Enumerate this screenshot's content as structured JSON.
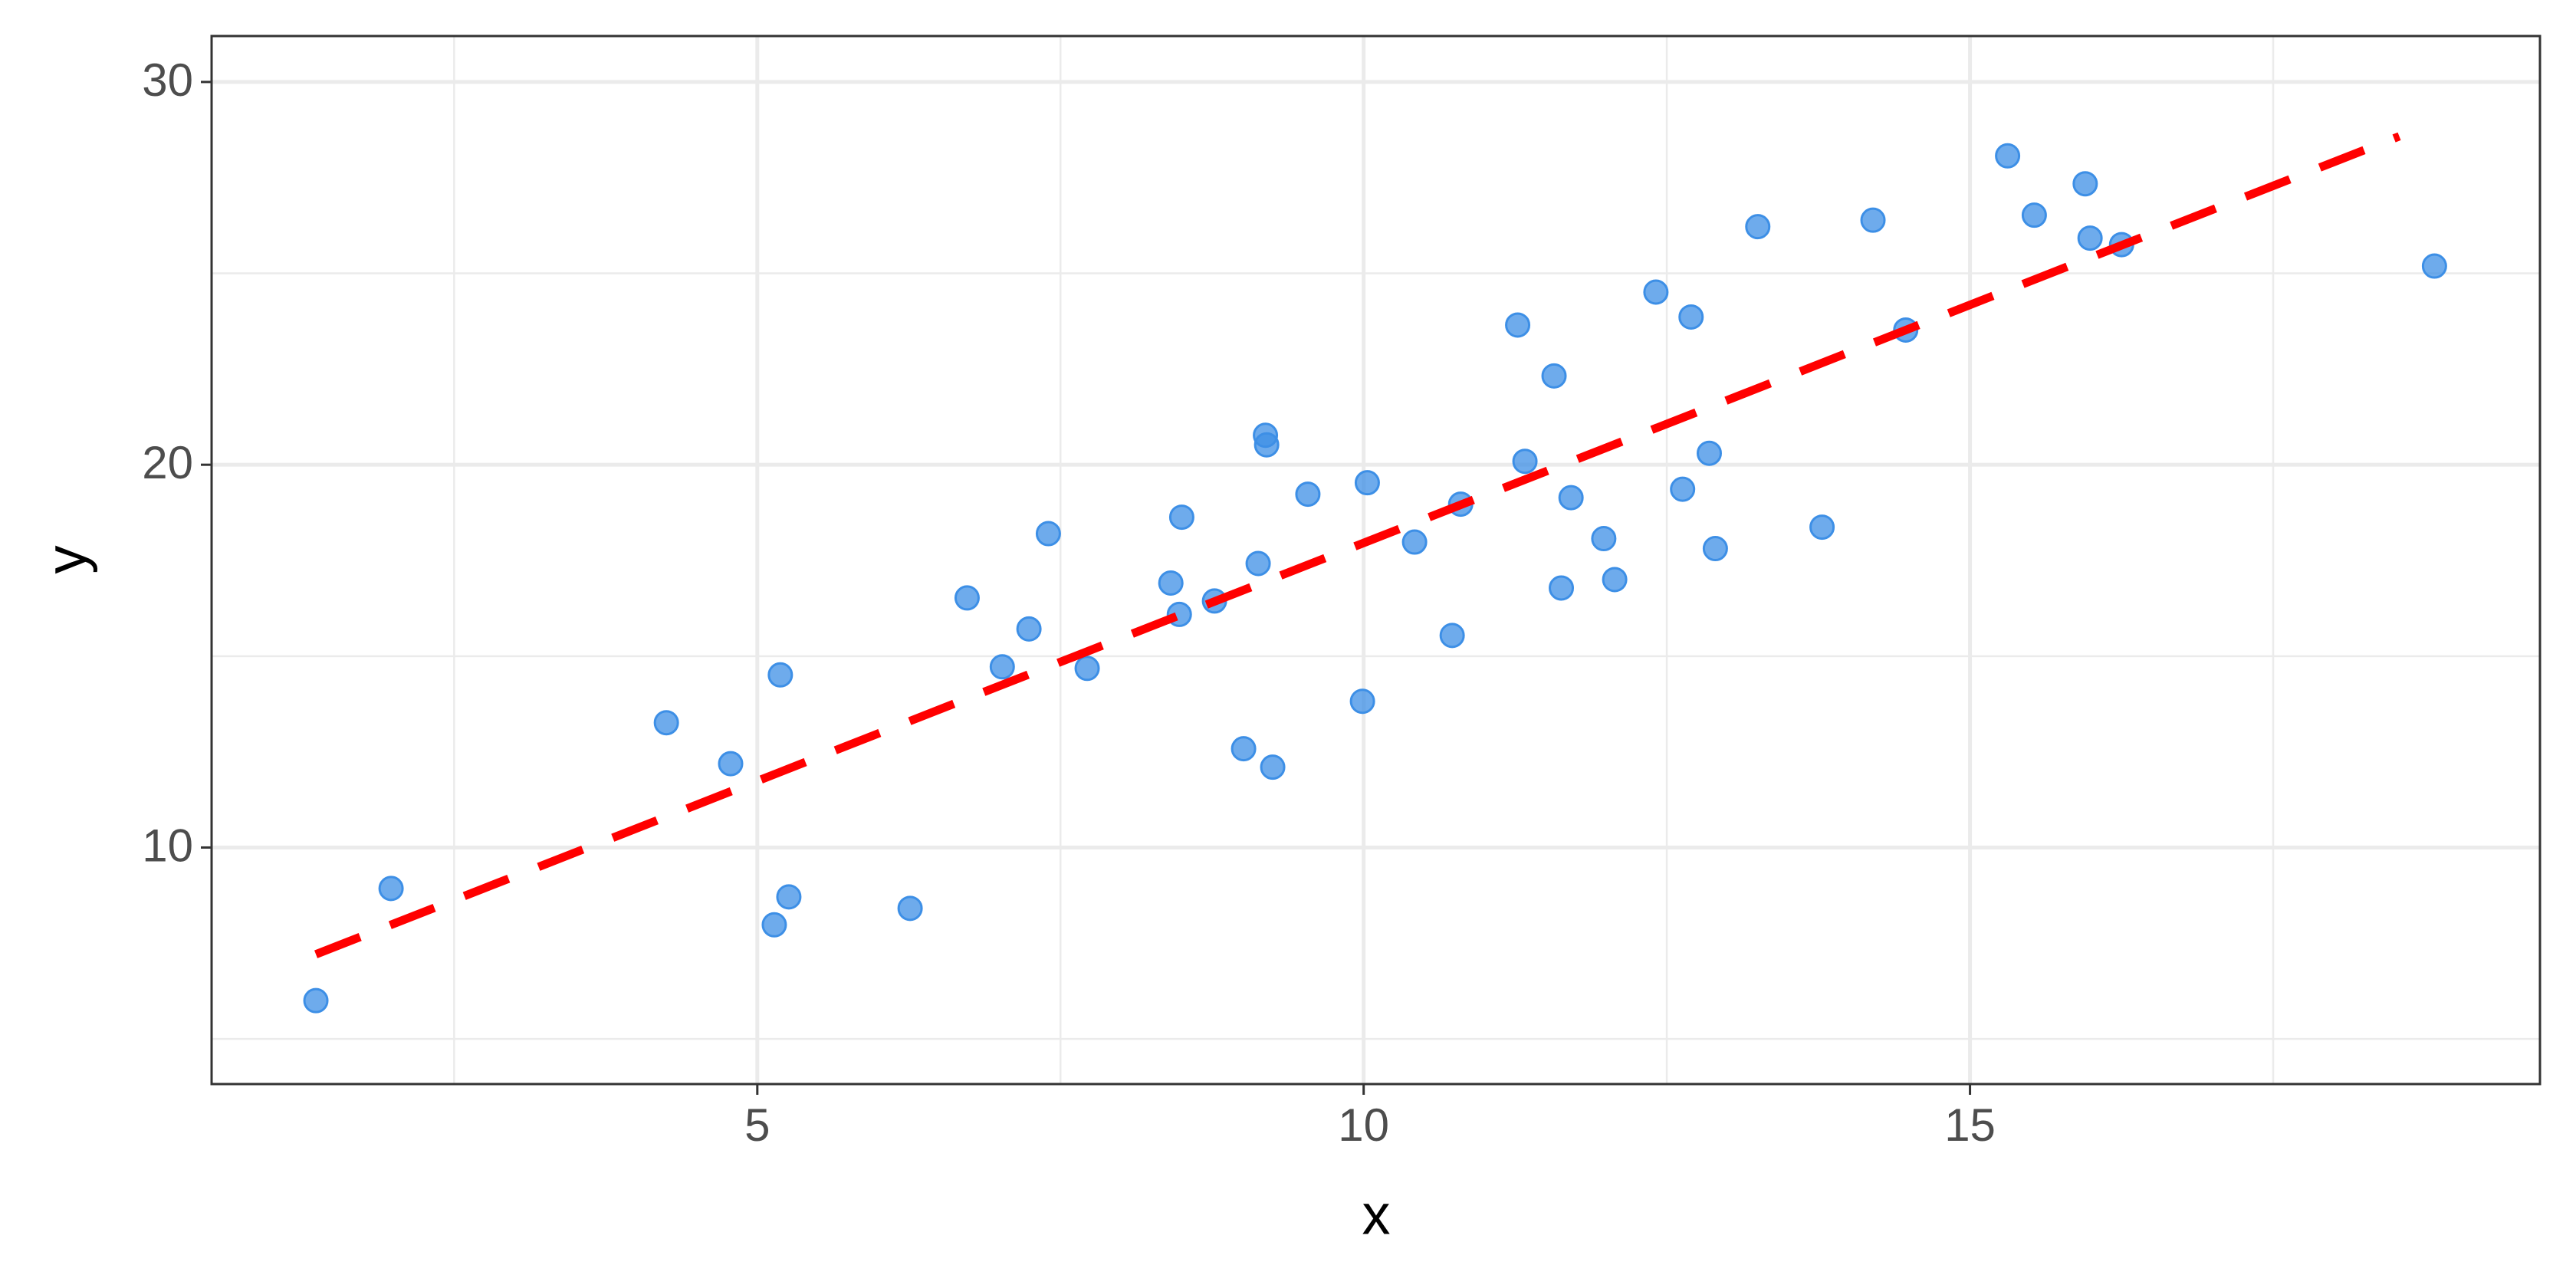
{
  "chart_data": {
    "type": "scatter",
    "xlabel": "x",
    "ylabel": "y",
    "x": [
      1.36,
      1.98,
      4.25,
      4.78,
      5.19,
      5.14,
      5.26,
      6.26,
      6.73,
      7.02,
      7.24,
      7.4,
      7.72,
      8.41,
      8.48,
      8.5,
      8.77,
      9.01,
      9.13,
      9.19,
      9.2,
      9.25,
      9.54,
      9.99,
      10.03,
      10.42,
      10.73,
      10.8,
      11.27,
      11.33,
      11.57,
      11.63,
      11.71,
      11.98,
      12.07,
      12.41,
      12.63,
      12.7,
      12.85,
      12.9,
      13.25,
      13.78,
      14.2,
      14.47,
      15.31,
      15.53,
      15.95,
      15.99,
      16.25,
      18.83
    ],
    "values": [
      6.0,
      8.93,
      13.26,
      12.19,
      14.51,
      7.98,
      8.71,
      8.41,
      16.52,
      14.72,
      15.71,
      18.2,
      14.68,
      16.91,
      16.09,
      18.63,
      16.44,
      12.58,
      17.42,
      20.77,
      20.52,
      12.1,
      19.23,
      13.82,
      19.53,
      17.98,
      15.54,
      18.97,
      23.65,
      20.09,
      22.32,
      16.78,
      19.14,
      18.07,
      17.0,
      24.51,
      19.36,
      23.86,
      20.3,
      17.81,
      26.22,
      18.37,
      26.39,
      23.52,
      28.07,
      26.52,
      27.34,
      25.92,
      25.75,
      25.19
    ],
    "color": "#3d8fe6",
    "fit_line": {
      "x": [
        1.36,
        18.54
      ],
      "y": [
        7.21,
        28.58
      ],
      "color": "#ff0000",
      "dashed": true
    },
    "xlim": [
      0.5,
      19.7
    ],
    "ylim": [
      3.82,
      31.2
    ],
    "xticks": [
      5,
      10,
      15
    ],
    "yticks": [
      10,
      20,
      30
    ],
    "xminor": [
      2.5,
      7.5,
      12.5,
      17.5
    ],
    "yminor": [
      5,
      15,
      25
    ],
    "grid": true
  }
}
